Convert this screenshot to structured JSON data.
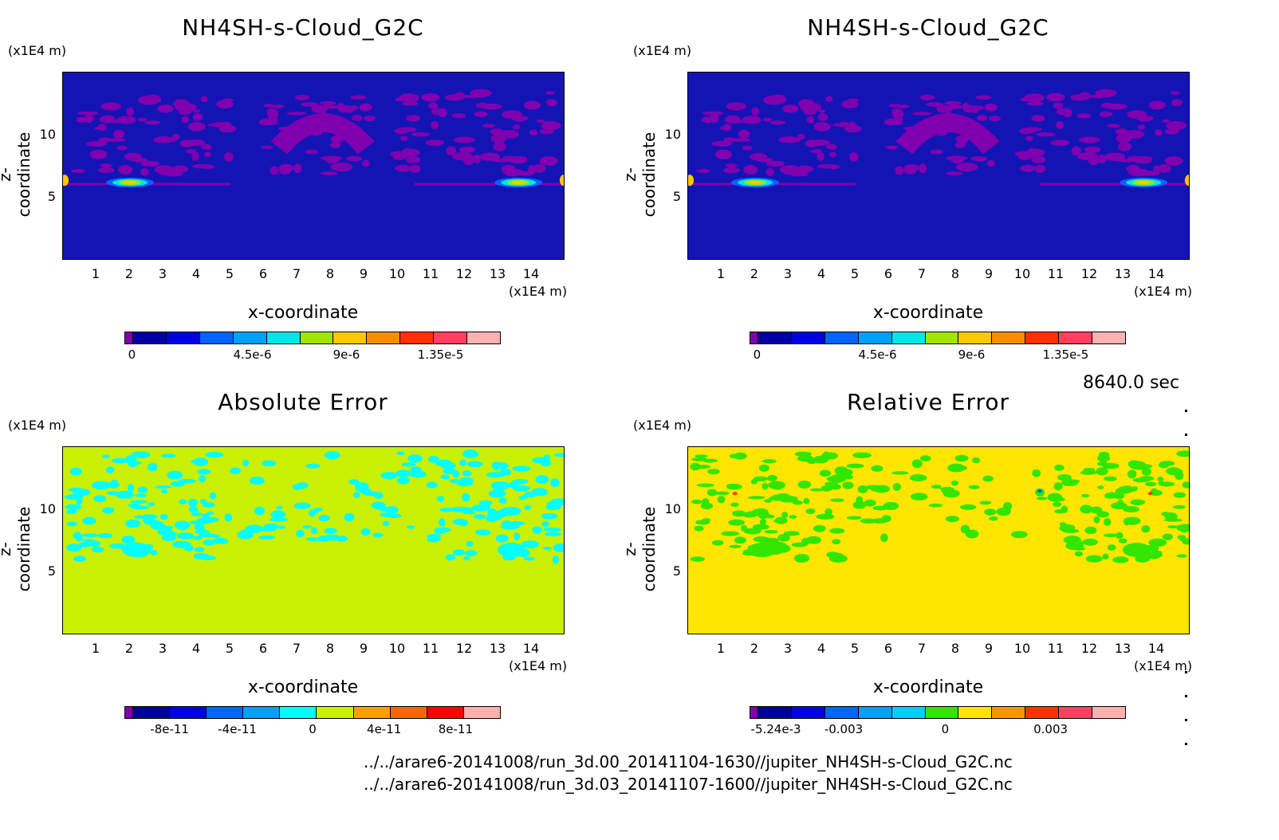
{
  "panels": [
    {
      "title": "NH4SH-s-Cloud_G2C",
      "y_unit": "(x1E4 m)",
      "y_label": "z-coordinate",
      "x_unit": "(x1E4 m)",
      "x_label": "x-coordinate",
      "colorbar_ticks": [
        "0",
        "4.5e-6",
        "9e-6",
        "1.35e-5"
      ]
    },
    {
      "title": "NH4SH-s-Cloud_G2C",
      "y_unit": "(x1E4 m)",
      "y_label": "z-coordinate",
      "x_unit": "(x1E4 m)",
      "x_label": "x-coordinate",
      "colorbar_ticks": [
        "0",
        "4.5e-6",
        "9e-6",
        "1.35e-5"
      ]
    },
    {
      "title": "Absolute Error",
      "y_unit": "(x1E4 m)",
      "y_label": "z-coordinate",
      "x_unit": "(x1E4 m)",
      "x_label": "x-coordinate",
      "colorbar_ticks": [
        "-8e-11",
        "-4e-11",
        "0",
        "4e-11",
        "8e-11"
      ]
    },
    {
      "title": "Relative Error",
      "y_unit": "(x1E4 m)",
      "y_label": "z-coordinate",
      "x_unit": "(x1E4 m)",
      "x_label": "x-coordinate",
      "colorbar_ticks": [
        "-5.24e-3",
        "-0.003",
        "0",
        "0.003"
      ]
    }
  ],
  "x_ticks": [
    "1",
    "2",
    "3",
    "4",
    "5",
    "6",
    "7",
    "8",
    "9",
    "10",
    "11",
    "12",
    "13",
    "14"
  ],
  "y_ticks": [
    "5",
    "10"
  ],
  "timestamp": "8640.0 sec",
  "files": [
    "../../arare6-20141008/run_3d.00_20141104-1630//jupiter_NH4SH-s-Cloud_G2C.nc",
    "../../arare6-20141008/run_3d.03_20141107-1600//jupiter_NH4SH-s-Cloud_G2C.nc"
  ],
  "colors": {
    "cloud_cbar": [
      "#8000b0",
      "#0000a0",
      "#0000e6",
      "#0064ff",
      "#00a0ff",
      "#00e6e6",
      "#a0e600",
      "#ffc800",
      "#ff8c00",
      "#ff3200",
      "#ff4060",
      "#ffb0b0"
    ],
    "abs_cbar": [
      "#8000b0",
      "#0000a0",
      "#0000e6",
      "#0064ff",
      "#00a0ff",
      "#00ffff",
      "#c8f000",
      "#ffa000",
      "#ff6400",
      "#ff0000",
      "#ffb0b0"
    ],
    "rel_cbar": [
      "#8000b0",
      "#0000a0",
      "#0000e6",
      "#0064ff",
      "#00a0ff",
      "#00d0ff",
      "#32e600",
      "#ffe600",
      "#ff9600",
      "#ff3200",
      "#ff4060",
      "#ffb0b0"
    ],
    "cloud_bg": "#1414b4",
    "cloud_feature": "#8000b0",
    "abs_bg": "#c8f000",
    "abs_feature": "#00ffff",
    "rel_bg": "#ffe600",
    "rel_feature": "#32e600"
  },
  "chart_data": [
    {
      "type": "heatmap",
      "title": "NH4SH-s-Cloud_G2C",
      "xlabel": "x-coordinate",
      "ylabel": "z-coordinate",
      "x_unit": "(x1E4 m)",
      "y_unit": "(x1E4 m)",
      "xlim": [
        0,
        15
      ],
      "ylim": [
        0,
        15
      ],
      "colorbar_ticks": [
        0,
        4.5e-06,
        9e-06,
        1.35e-05
      ],
      "description_values": {
        "background": 0,
        "peak_near_z": 6,
        "peak_x": [
          2,
          13.5,
          0.1,
          14.9
        ]
      }
    },
    {
      "type": "heatmap",
      "title": "NH4SH-s-Cloud_G2C",
      "xlabel": "x-coordinate",
      "ylabel": "z-coordinate",
      "x_unit": "(x1E4 m)",
      "y_unit": "(x1E4 m)",
      "xlim": [
        0,
        15
      ],
      "ylim": [
        0,
        15
      ],
      "colorbar_ticks": [
        0,
        4.5e-06,
        9e-06,
        1.35e-05
      ],
      "description_values": {
        "background": 0,
        "peak_near_z": 6,
        "peak_x": [
          2,
          13.5,
          0.1,
          14.9
        ]
      }
    },
    {
      "type": "heatmap",
      "title": "Absolute Error",
      "xlabel": "x-coordinate",
      "ylabel": "z-coordinate",
      "x_unit": "(x1E4 m)",
      "y_unit": "(x1E4 m)",
      "xlim": [
        0,
        15
      ],
      "ylim": [
        0,
        15
      ],
      "colorbar_ticks": [
        -8e-11,
        -4e-11,
        0,
        4e-11,
        8e-11
      ]
    },
    {
      "type": "heatmap",
      "title": "Relative Error",
      "xlabel": "x-coordinate",
      "ylabel": "z-coordinate",
      "x_unit": "(x1E4 m)",
      "y_unit": "(x1E4 m)",
      "xlim": [
        0,
        15
      ],
      "ylim": [
        0,
        15
      ],
      "colorbar_ticks": [
        -0.00524,
        -0.003,
        0,
        0.003
      ]
    }
  ]
}
